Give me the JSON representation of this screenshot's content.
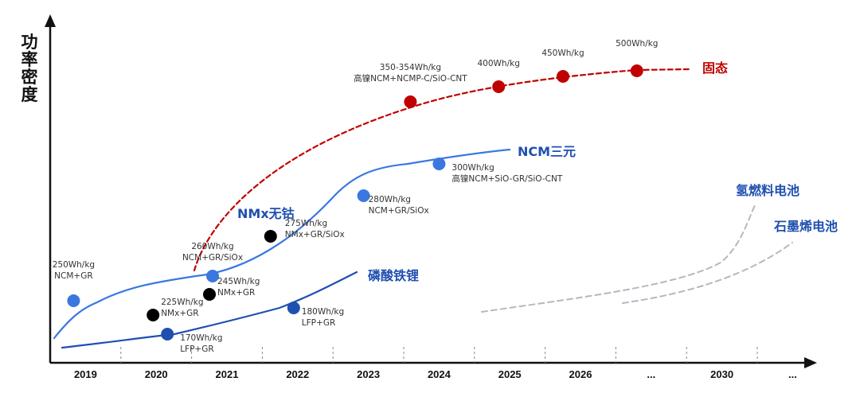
{
  "chart_data": {
    "type": "line",
    "ylabel": "功率密度",
    "xlabel": "",
    "categories": [
      "2019",
      "2020",
      "2021",
      "2022",
      "2023",
      "2024",
      "2025",
      "2026",
      "...",
      "2030",
      "..."
    ],
    "series": [
      {
        "name": "固态",
        "color": "#c00000",
        "style": "dashed",
        "points": [
          {
            "x": "2024",
            "label": [
              "350-354Wh/kg",
              "高镍NCM+NCMP-C/SiO-CNT"
            ]
          },
          {
            "x": "2025",
            "label": [
              "400Wh/kg"
            ]
          },
          {
            "x": "2026",
            "label": [
              "450Wh/kg"
            ]
          },
          {
            "x": "...",
            "label": [
              "500Wh/kg"
            ]
          }
        ]
      },
      {
        "name": "NCM三元",
        "color": "#3a78e0",
        "style": "solid",
        "points": [
          {
            "x": "2019",
            "label": [
              "250Wh/kg",
              "NCM+GR"
            ]
          },
          {
            "x": "2021",
            "label": [
              "260Wh/kg",
              "NCM+GR/SiOx"
            ]
          },
          {
            "x": "2023",
            "label": [
              "280Wh/kg",
              "NCM+GR/SiOx"
            ]
          },
          {
            "x": "2024",
            "label": [
              "300Wh/kg",
              "高镍NCM+SiO-GR/SiO-CNT"
            ]
          }
        ]
      },
      {
        "name": "NMx无钴",
        "color": "#000000",
        "style": "markers",
        "points": [
          {
            "x": "2020",
            "label": [
              "225Wh/kg",
              "NMx+GR"
            ]
          },
          {
            "x": "2021",
            "label": [
              "245Wh/kg",
              "NMx+GR"
            ]
          },
          {
            "x": "2022",
            "label": [
              "275Wh/kg",
              "NMx+GR/SiOx"
            ]
          }
        ]
      },
      {
        "name": "磷酸铁锂",
        "color": "#1f4fb0",
        "style": "solid",
        "points": [
          {
            "x": "2020",
            "label": [
              "170Wh/kg",
              "LFP+GR"
            ]
          },
          {
            "x": "2022",
            "label": [
              "180Wh/kg",
              "LFP+GR"
            ]
          }
        ]
      },
      {
        "name": "氢燃料电池",
        "color": "#b4b8c0",
        "style": "dashed",
        "points": []
      },
      {
        "name": "石墨烯电池",
        "color": "#b4b8c0",
        "style": "dashed",
        "points": []
      }
    ]
  }
}
